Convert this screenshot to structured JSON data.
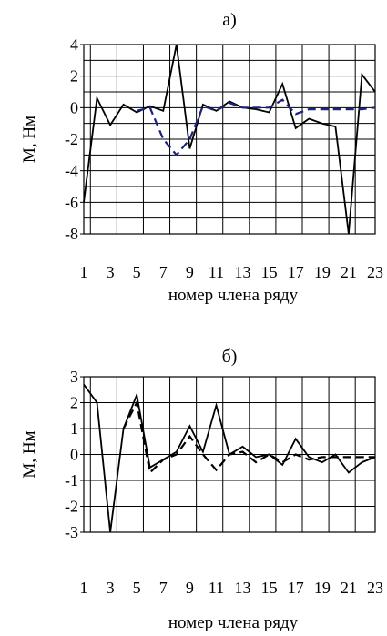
{
  "chart_data": [
    {
      "type": "line",
      "title": "а)",
      "ylabel": "M, Нм",
      "xlabel": "номер члена ряду",
      "x": [
        1,
        2,
        3,
        4,
        5,
        6,
        7,
        8,
        9,
        10,
        11,
        12,
        13,
        14,
        15,
        16,
        17,
        18,
        19,
        20,
        21,
        22,
        23
      ],
      "x_tick_labels": [
        "1",
        "3",
        "5",
        "7",
        "9",
        "11",
        "13",
        "15",
        "17",
        "19",
        "21",
        "23"
      ],
      "y_tick_labels": [
        "4",
        "2",
        "0",
        "-2",
        "-4",
        "-6",
        "-8"
      ],
      "ylim": [
        -8,
        4
      ],
      "grid": true,
      "series": [
        {
          "style": "solid",
          "color": "#000000",
          "values": [
            -6,
            0.6,
            -1.1,
            0.2,
            -0.3,
            0.1,
            -0.2,
            4.0,
            -2.6,
            0.2,
            -0.2,
            0.4,
            0.0,
            -0.1,
            -0.3,
            1.5,
            -1.3,
            -0.7,
            -1.0,
            -1.2,
            -8.0,
            2.1,
            1.0
          ]
        },
        {
          "style": "dashed",
          "color": "#1a237e",
          "x": [
            5,
            6,
            7,
            8,
            9,
            10,
            11,
            12,
            13,
            14,
            15,
            16,
            17,
            18,
            19,
            20,
            21,
            22,
            23
          ],
          "values": [
            -0.2,
            0.0,
            -2.0,
            -3.0,
            -2.0,
            0.1,
            -0.2,
            0.3,
            0.0,
            0.0,
            0.0,
            0.5,
            -0.4,
            -0.1,
            -0.1,
            -0.1,
            -0.1,
            -0.1,
            0.0
          ]
        }
      ]
    },
    {
      "type": "line",
      "title": "б)",
      "ylabel": "M, Нм",
      "xlabel": "номер члена ряду",
      "x": [
        1,
        2,
        3,
        4,
        5,
        6,
        7,
        8,
        9,
        10,
        11,
        12,
        13,
        14,
        15,
        16,
        17,
        18,
        19,
        20,
        21,
        22,
        23
      ],
      "x_tick_labels": [
        "1",
        "3",
        "5",
        "7",
        "9",
        "11",
        "13",
        "15",
        "17",
        "19",
        "21",
        "23"
      ],
      "y_tick_labels": [
        "3",
        "2",
        "1",
        "0",
        "-1",
        "-2",
        "-3"
      ],
      "ylim": [
        -3,
        3
      ],
      "grid": true,
      "series": [
        {
          "style": "solid",
          "color": "#000000",
          "values": [
            2.7,
            2.0,
            -3.0,
            1.0,
            2.3,
            -0.5,
            -0.2,
            0.1,
            1.1,
            0.1,
            1.9,
            0.0,
            0.3,
            -0.1,
            0.0,
            -0.4,
            0.6,
            -0.1,
            -0.3,
            0.0,
            -0.7,
            -0.3,
            -0.1
          ]
        },
        {
          "style": "dashed",
          "color": "#000000",
          "x": [
            4,
            5,
            6,
            7,
            8,
            9,
            10,
            11,
            12,
            13,
            14,
            15,
            16,
            17,
            18,
            19,
            20,
            21,
            22,
            23
          ],
          "values": [
            1.0,
            2.0,
            -0.7,
            -0.2,
            0.0,
            0.7,
            0.0,
            -0.6,
            0.0,
            0.1,
            -0.3,
            0.0,
            -0.3,
            0.0,
            -0.2,
            -0.1,
            -0.1,
            -0.1,
            -0.1,
            -0.1
          ]
        }
      ]
    }
  ]
}
